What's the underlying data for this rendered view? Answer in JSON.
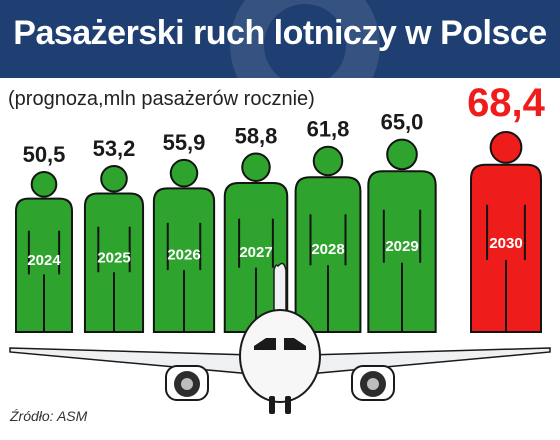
{
  "header": {
    "title": "Pasażerski ruch lotniczy w Polsce"
  },
  "subtitle": "(prognoza,mln pasażerów rocznie)",
  "source": "Źródło: ASM",
  "colors": {
    "header_bg": "#1f3f73",
    "forecast": "#2ea32e",
    "highlight": "#ef1c1c",
    "outline": "#141414"
  },
  "icons": {
    "figure": "person-silhouette-icon",
    "plane": "airplane-icon"
  },
  "chart_data": {
    "type": "bar",
    "categories": [
      "2024",
      "2025",
      "2026",
      "2027",
      "2028",
      "2029",
      "2030"
    ],
    "values": [
      50.5,
      53.2,
      55.9,
      58.8,
      61.8,
      65.0,
      68.4
    ],
    "value_labels": [
      "50,5",
      "53,2",
      "55,9",
      "58,8",
      "61,8",
      "65,0",
      "68,4"
    ],
    "highlight_index": 6,
    "title": "Pasażerski ruch lotniczy w Polsce",
    "subtitle": "(prognoza,mln pasażerów rocznie)",
    "xlabel": "",
    "ylabel": "",
    "grid": false,
    "legend": "none"
  }
}
